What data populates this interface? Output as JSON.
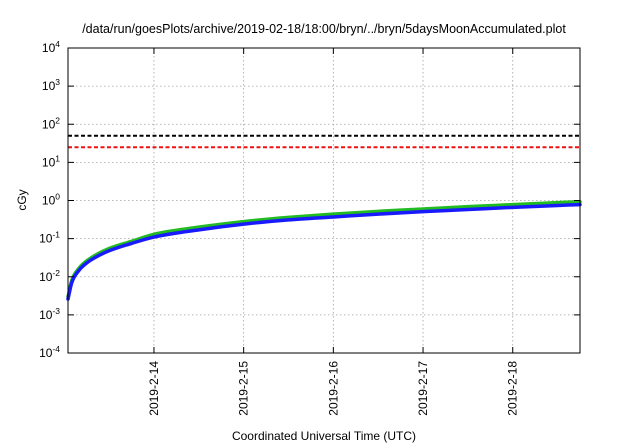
{
  "chart_data": {
    "type": "line",
    "title": "/data/run/goesPlots/archive/2019-02-18/18:00/bryn/../bryn/5daysMoonAccumulated.plot",
    "xlabel": "Coordinated Universal Time (UTC)",
    "ylabel": "cGy",
    "y_scale": "log",
    "ylim": [
      0.0001,
      10000
    ],
    "y_ticks": [
      {
        "value": 0.0001,
        "base": "10",
        "exp": "-4"
      },
      {
        "value": 0.001,
        "base": "10",
        "exp": "-3"
      },
      {
        "value": 0.01,
        "base": "10",
        "exp": "-2"
      },
      {
        "value": 0.1,
        "base": "10",
        "exp": "-1"
      },
      {
        "value": 1,
        "base": "10",
        "exp": "0"
      },
      {
        "value": 10,
        "base": "10",
        "exp": "1"
      },
      {
        "value": 100,
        "base": "10",
        "exp": "2"
      },
      {
        "value": 1000,
        "base": "10",
        "exp": "3"
      },
      {
        "value": 10000,
        "base": "10",
        "exp": "4"
      }
    ],
    "xlim": [
      "2019-02-13T01:00",
      "2019-02-18T18:00"
    ],
    "x_ticks": [
      "2019-2-14",
      "2019-2-15",
      "2019-2-16",
      "2019-2-17",
      "2019-2-18"
    ],
    "grid": true,
    "reference_lines": [
      {
        "value": 50,
        "color": "#000000",
        "style": "dashed"
      },
      {
        "value": 25,
        "color": "#ee1111",
        "style": "dashed"
      }
    ],
    "x": [
      "2019-02-13T01:00",
      "2019-02-13T02:00",
      "2019-02-13T04:00",
      "2019-02-13T06:00",
      "2019-02-13T09:00",
      "2019-02-13T12:00",
      "2019-02-13T18:00",
      "2019-02-14T00:00",
      "2019-02-14T12:00",
      "2019-02-15T00:00",
      "2019-02-15T12:00",
      "2019-02-16T00:00",
      "2019-02-16T12:00",
      "2019-02-17T00:00",
      "2019-02-17T12:00",
      "2019-02-18T00:00",
      "2019-02-18T12:00",
      "2019-02-18T18:00"
    ],
    "series": [
      {
        "color": "#22bb22",
        "values": [
          0.003,
          0.008,
          0.017,
          0.026,
          0.04,
          0.055,
          0.085,
          0.13,
          0.2,
          0.28,
          0.36,
          0.44,
          0.52,
          0.6,
          0.69,
          0.78,
          0.88,
          0.93
        ]
      },
      {
        "color": "#1a1aff",
        "values": [
          0.0026,
          0.007,
          0.015,
          0.023,
          0.035,
          0.048,
          0.075,
          0.11,
          0.17,
          0.24,
          0.31,
          0.37,
          0.44,
          0.51,
          0.58,
          0.66,
          0.74,
          0.78
        ]
      }
    ]
  }
}
